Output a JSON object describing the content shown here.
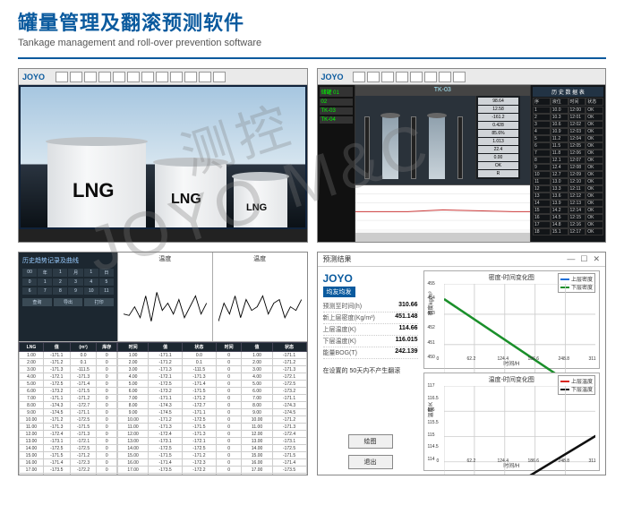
{
  "header": {
    "title_cn": "罐量管理及翻滚预测软件",
    "title_en": "Tankage management and roll-over prevention software"
  },
  "watermark": {
    "line1": "JOYO M&C",
    "line2": "测控"
  },
  "logo_text": "JOYO",
  "tl": {
    "tank_label": "LNG",
    "toolbar_icons": [
      "home",
      "zoom",
      "print",
      "list",
      "grid",
      "cfg",
      "alarm",
      "user",
      "help",
      "lock",
      "cal",
      "io"
    ]
  },
  "tr": {
    "tank_id": "TK-03",
    "left_status": [
      "储罐 01",
      "02",
      "TK-03",
      "TK-04"
    ],
    "table_header": "历 史 数 据 表",
    "table_cols": [
      "序",
      "液位",
      "时间",
      "状态"
    ],
    "readouts": [
      "98.64",
      "12.58",
      "-161.2",
      "0.428",
      "85.6%",
      "1.013",
      "22.4",
      "0.00",
      "OK",
      "R"
    ],
    "chart_title": "",
    "series_color": "#cc3a3a"
  },
  "bl": {
    "panel_title": "历史趋势记录及曲线",
    "chart1_title": "温度",
    "chart2_title": "温度",
    "ctrl_row1": [
      "00",
      "年",
      "1",
      "月",
      "1",
      "日"
    ],
    "ctrl_row2": [
      "0",
      "1",
      "2",
      "3",
      "4",
      "5"
    ],
    "ctrl_row3": [
      "6",
      "7",
      "8",
      "9",
      "10",
      "11"
    ],
    "ctrl_btns": [
      "查询",
      "导出",
      "打印"
    ],
    "table_cols_l": [
      "LNG",
      "值",
      "(m³)",
      "库存"
    ],
    "table_cols_r": [
      "时间",
      "值",
      "状态",
      "时间",
      "值",
      "状态"
    ],
    "rows_l": [
      [
        "1.00",
        "-171.1",
        "0.0",
        "0"
      ],
      [
        "2.00",
        "-171.2",
        "0.1",
        "0"
      ],
      [
        "3.00",
        "-171.3",
        "-111.5",
        "0"
      ],
      [
        "4.00",
        "-172.1",
        "-171.3",
        "0"
      ],
      [
        "5.00",
        "-172.5",
        "-171.4",
        "0"
      ],
      [
        "6.00",
        "-173.2",
        "-171.5",
        "0"
      ],
      [
        "7.00",
        "-171.1",
        "-171.2",
        "0"
      ],
      [
        "8.00",
        "-174.3",
        "-172.7",
        "0"
      ],
      [
        "9.00",
        "-174.5",
        "-171.1",
        "0"
      ],
      [
        "10.00",
        "-171.2",
        "-172.5",
        "0"
      ],
      [
        "11.00",
        "-171.3",
        "-171.5",
        "0"
      ],
      [
        "12.00",
        "-172.4",
        "-171.3",
        "0"
      ],
      [
        "13.00",
        "-173.1",
        "-172.1",
        "0"
      ],
      [
        "14.00",
        "-172.5",
        "-172.5",
        "0"
      ],
      [
        "15.00",
        "-171.5",
        "-171.2",
        "0"
      ],
      [
        "16.00",
        "-171.4",
        "-172.3",
        "0"
      ],
      [
        "17.00",
        "-173.5",
        "-172.2",
        "0"
      ],
      [
        "18.00",
        "-172.5",
        "-171.5",
        "0"
      ]
    ],
    "line_color": "#000",
    "series1": [
      30,
      28,
      40,
      25,
      55,
      20,
      60,
      35,
      45,
      30,
      50,
      25,
      40,
      55,
      30,
      45
    ],
    "series2": [
      20,
      45,
      30,
      55,
      25,
      50,
      35,
      40,
      55,
      30,
      45,
      50,
      25,
      40,
      35,
      50
    ]
  },
  "br": {
    "window_title": "预测结果",
    "logo": "JOYO",
    "logo_sub": "均友均发",
    "kv": [
      {
        "k": "预测至时间(h)",
        "v": "310.66"
      },
      {
        "k": "新上层密度(Kg/m³)",
        "v": "451.148"
      },
      {
        "k": "上层温度(K)",
        "v": "114.66"
      },
      {
        "k": "下层温度(K)",
        "v": "116.015"
      },
      {
        "k": "能量BOG(T)",
        "v": "242.139"
      }
    ],
    "note": "在设置的 50天内不产生翻滚",
    "btn_plot": "绘图",
    "btn_exit": "退出",
    "chart1": {
      "title": "密度-时间变化图",
      "ylabel": "密度kg/m³",
      "xlabel": "时间/H",
      "ylim": [
        450,
        455
      ],
      "yticks": [
        450,
        451,
        452,
        453,
        454,
        455
      ],
      "xticks": [
        0,
        62.2,
        124.4,
        186.6,
        248.8,
        311
      ],
      "legend": [
        {
          "label": "上层密度",
          "color": "#1e6fd8"
        },
        {
          "label": "下层密度",
          "color": "#1a8f2a"
        }
      ],
      "series_upper": {
        "color": "#1e6fd8",
        "y0": 451.0,
        "y1": 451.15
      },
      "series_lower": {
        "color": "#1a8f2a",
        "y0": 454.5,
        "y1": 451.15
      }
    },
    "chart2": {
      "title": "温度-时间变化图",
      "ylabel": "温度/K",
      "xlabel": "时间/H",
      "ylim": [
        114,
        117
      ],
      "yticks": [
        114,
        114.5,
        115,
        115.5,
        116,
        116.5,
        117
      ],
      "xticks": [
        0,
        62.2,
        124.4,
        186.6,
        248.8,
        311
      ],
      "legend": [
        {
          "label": "上层温度",
          "color": "#d8261e"
        },
        {
          "label": "下层温度",
          "color": "#101010"
        }
      ],
      "series_upper": {
        "color": "#d8261e",
        "y0": 114.7,
        "y1": 114.66
      },
      "series_lower": {
        "color": "#101010",
        "y0": 114.2,
        "y1": 116.015
      }
    }
  }
}
